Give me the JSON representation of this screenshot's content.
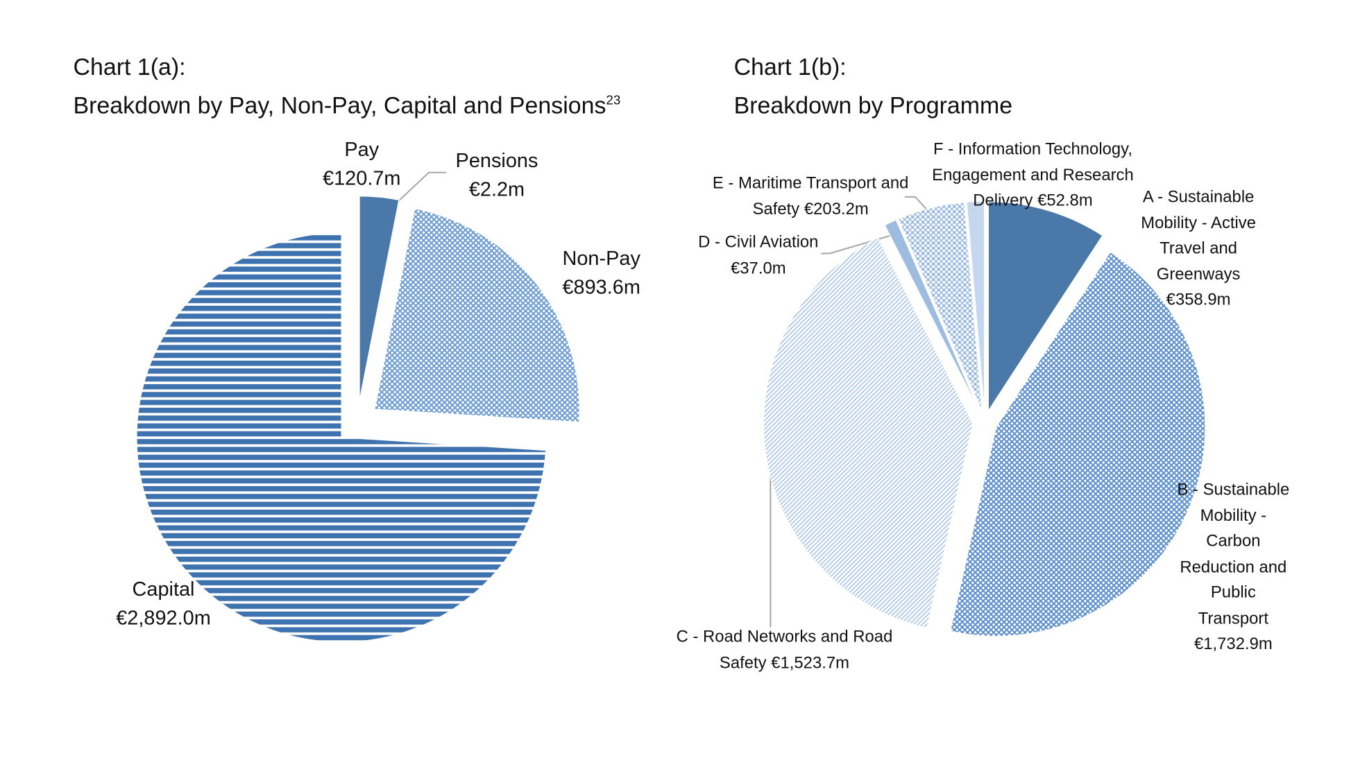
{
  "chart_data": [
    {
      "type": "pie",
      "title": "Chart 1(a):",
      "subtitle": "Breakdown by Pay, Non-Pay, Capital and Pensions",
      "title_footnote": "23",
      "categories": [
        "Pay",
        "Pensions",
        "Non-Pay",
        "Capital"
      ],
      "values": [
        120.7,
        2.2,
        893.6,
        2892.0
      ],
      "value_labels": [
        "€120.7m",
        "€2.2m",
        "€893.6m",
        "€2,892.0m"
      ],
      "colors": [
        "#4a78a8",
        "#4a78a8",
        "#6b9bd1",
        "#3f73b0"
      ]
    },
    {
      "type": "pie",
      "title": "Chart 1(b):",
      "subtitle": "Breakdown by Programme",
      "categories": [
        "A - Sustainable Mobility - Active Travel and Greenways",
        "B - Sustainable Mobility - Carbon Reduction and Public Transport",
        "C - Road Networks and Road Safety",
        "D - Civil Aviation",
        "E - Maritime Transport and Safety",
        "F - Information Technology, Engagement and Research Delivery"
      ],
      "values": [
        358.9,
        1732.9,
        1523.7,
        37.0,
        203.2,
        52.8
      ],
      "value_labels": [
        "€358.9m",
        "€1,732.9m",
        "€1,523.7m",
        "€37.0m",
        "€203.2m",
        "€52.8m"
      ],
      "colors": [
        "#4a78a8",
        "#5b8ecc",
        "#a9c4e6",
        "#9ebbe0",
        "#8fb2de",
        "#c5d7ee"
      ]
    }
  ]
}
